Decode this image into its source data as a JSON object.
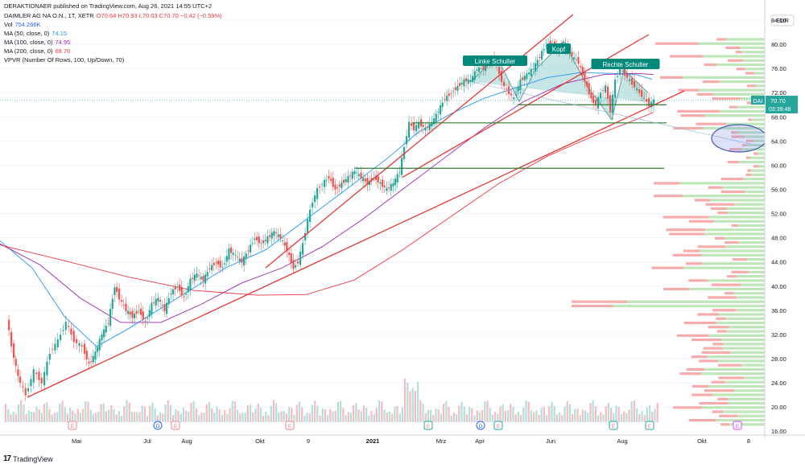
{
  "publisher": "DERAKTIONAER published on TradingView.com, Aug 26, 2021 14:55 UTC+2",
  "legend": [
    {
      "label": "DAIMLER AG NA O.N., 1T, XETR",
      "value": "O70.64 H70.93 L70.03 C70.70 −0.42 (−0.59%)",
      "color": "#f23645"
    },
    {
      "label": "Vol",
      "value": "754.266K",
      "color": "#2962ff"
    },
    {
      "label": "MA (50, close, 0)",
      "value": "74.15",
      "color": "#2196f3"
    },
    {
      "label": "MA (100, close, 0)",
      "value": "74.95",
      "color": "#9c27b0"
    },
    {
      "label": "MA (200, close, 0)",
      "value": "68.76",
      "color": "#f23645"
    },
    {
      "label": "VPVR (Number Of Rows, 100, Up/Down, 70)",
      "value": "",
      "color": "#131722"
    }
  ],
  "currency": "EUR",
  "brand": "TradingView",
  "colors": {
    "up": "#26a69a",
    "down": "#ef5350",
    "trend": "#e53935",
    "neckline": "#2e7d32",
    "ma50": "#2196f3",
    "ma100": "#9c27b0",
    "ma200": "#f23645",
    "vpvrUp": "#b7e3b0",
    "vpvrDown": "#f5a3a3",
    "shade": "#7fc8c4"
  },
  "chart_data": {
    "type": "line",
    "title": "DAIMLER AG NA O.N., 1T, XETR",
    "x_ticks": [
      "Mai",
      "Jul",
      "Aug",
      "Okt",
      "9",
      "2021",
      "Mrz",
      "Apr",
      "Jun",
      "Aug",
      "Okt",
      "8"
    ],
    "y_ticks": [
      16,
      20,
      24,
      28,
      32,
      36,
      40,
      44,
      48,
      52,
      56,
      60,
      64,
      68,
      72,
      76,
      80,
      84
    ],
    "ylim": [
      15.5,
      86
    ],
    "price_line": 70.7,
    "last_price": "70.70",
    "countdown": "03:39:48",
    "ticker": "DAI",
    "annotations": [
      "Linke Schulter",
      "Kopf",
      "Rechte Schulter"
    ],
    "series": [
      {
        "name": "MA (50, close, 0)",
        "values": [
          [
            0,
            47.5
          ],
          [
            40,
            43
          ],
          [
            80,
            35
          ],
          [
            120,
            30
          ],
          [
            160,
            33
          ],
          [
            220,
            38
          ],
          [
            280,
            43
          ],
          [
            330,
            46
          ],
          [
            380,
            51
          ],
          [
            430,
            56
          ],
          [
            480,
            61
          ],
          [
            520,
            65.5
          ],
          [
            560,
            68.5
          ],
          [
            600,
            71
          ],
          [
            640,
            72.8
          ],
          [
            680,
            74.5
          ],
          [
            720,
            75.3
          ],
          [
            760,
            75.2
          ],
          [
            790,
            75
          ],
          [
            810,
            74.2
          ]
        ]
      },
      {
        "name": "MA (100, close, 0)",
        "values": [
          [
            0,
            47
          ],
          [
            50,
            43.5
          ],
          [
            100,
            38
          ],
          [
            150,
            34
          ],
          [
            200,
            34
          ],
          [
            250,
            37
          ],
          [
            300,
            40.5
          ],
          [
            350,
            43
          ],
          [
            400,
            46.5
          ],
          [
            450,
            51
          ],
          [
            500,
            56
          ],
          [
            550,
            61
          ],
          [
            600,
            66
          ],
          [
            650,
            70.5
          ],
          [
            700,
            73.5
          ],
          [
            750,
            75
          ],
          [
            790,
            75.2
          ],
          [
            812,
            75
          ]
        ]
      },
      {
        "name": "MA (200, close, 0)",
        "values": [
          [
            0,
            46.8
          ],
          [
            80,
            44.2
          ],
          [
            160,
            41.5
          ],
          [
            240,
            39.3
          ],
          [
            320,
            38.5
          ],
          [
            380,
            38.6
          ],
          [
            440,
            41
          ],
          [
            500,
            46
          ],
          [
            560,
            51.5
          ],
          [
            620,
            57
          ],
          [
            680,
            61.5
          ],
          [
            740,
            65
          ],
          [
            780,
            67
          ],
          [
            812,
            68.76
          ]
        ]
      }
    ],
    "close": [
      [
        10,
        35
      ],
      [
        16,
        30
      ],
      [
        24,
        25
      ],
      [
        34,
        22
      ],
      [
        44,
        26
      ],
      [
        54,
        24
      ],
      [
        64,
        29
      ],
      [
        74,
        31
      ],
      [
        84,
        34
      ],
      [
        94,
        31
      ],
      [
        104,
        30
      ],
      [
        112,
        27
      ],
      [
        120,
        29
      ],
      [
        128,
        32
      ],
      [
        136,
        34
      ],
      [
        144,
        40
      ],
      [
        150,
        38
      ],
      [
        158,
        36
      ],
      [
        166,
        35
      ],
      [
        174,
        36
      ],
      [
        182,
        34
      ],
      [
        190,
        37
      ],
      [
        198,
        38
      ],
      [
        206,
        36
      ],
      [
        214,
        39
      ],
      [
        222,
        40
      ],
      [
        230,
        38
      ],
      [
        238,
        41
      ],
      [
        246,
        42
      ],
      [
        254,
        41
      ],
      [
        262,
        43
      ],
      [
        270,
        44
      ],
      [
        278,
        43
      ],
      [
        286,
        46
      ],
      [
        294,
        45
      ],
      [
        302,
        44
      ],
      [
        310,
        46
      ],
      [
        318,
        48
      ],
      [
        326,
        47
      ],
      [
        334,
        48
      ],
      [
        342,
        49
      ],
      [
        350,
        48
      ],
      [
        358,
        46
      ],
      [
        366,
        43
      ],
      [
        372,
        44
      ],
      [
        378,
        47
      ],
      [
        384,
        51
      ],
      [
        390,
        54
      ],
      [
        396,
        56
      ],
      [
        402,
        57
      ],
      [
        410,
        58
      ],
      [
        418,
        56
      ],
      [
        426,
        57
      ],
      [
        434,
        58
      ],
      [
        442,
        59
      ],
      [
        450,
        58
      ],
      [
        458,
        57
      ],
      [
        466,
        58
      ],
      [
        474,
        57
      ],
      [
        482,
        56
      ],
      [
        490,
        57
      ],
      [
        498,
        59
      ],
      [
        504,
        63
      ],
      [
        510,
        67
      ],
      [
        516,
        66
      ],
      [
        522,
        67
      ],
      [
        530,
        66
      ],
      [
        538,
        67
      ],
      [
        546,
        69
      ],
      [
        554,
        71
      ],
      [
        562,
        72
      ],
      [
        570,
        73
      ],
      [
        578,
        74
      ],
      [
        586,
        74
      ],
      [
        594,
        76
      ],
      [
        602,
        76
      ],
      [
        610,
        77
      ],
      [
        616,
        78
      ],
      [
        622,
        75
      ],
      [
        628,
        73
      ],
      [
        634,
        72
      ],
      [
        640,
        71
      ],
      [
        648,
        74
      ],
      [
        656,
        75
      ],
      [
        664,
        76
      ],
      [
        672,
        78
      ],
      [
        680,
        80
      ],
      [
        688,
        80
      ],
      [
        696,
        79
      ],
      [
        704,
        80
      ],
      [
        712,
        78
      ],
      [
        720,
        77
      ],
      [
        728,
        74
      ],
      [
        736,
        71
      ],
      [
        742,
        70
      ],
      [
        748,
        72
      ],
      [
        754,
        73
      ],
      [
        760,
        69
      ],
      [
        766,
        74
      ],
      [
        772,
        76
      ],
      [
        778,
        75
      ],
      [
        784,
        74
      ],
      [
        790,
        73
      ],
      [
        796,
        72
      ],
      [
        802,
        71
      ],
      [
        808,
        70
      ],
      [
        814,
        70.7
      ]
    ],
    "volume_note": "volume bars along bottom of chart"
  }
}
